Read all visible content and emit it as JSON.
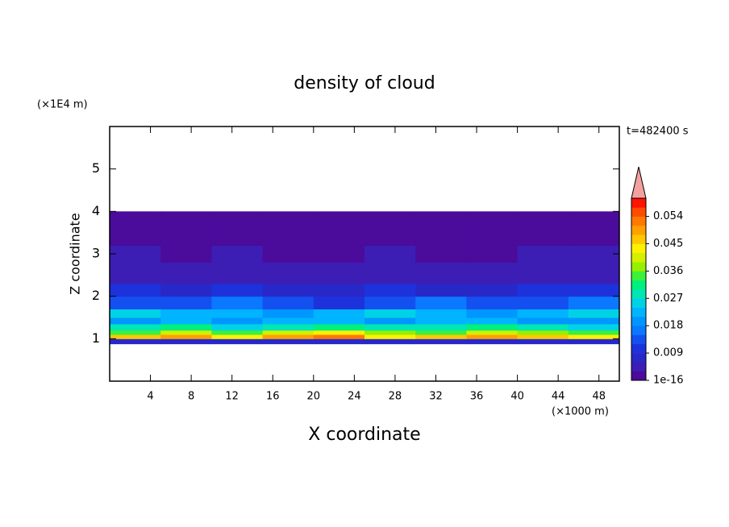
{
  "chart_data": {
    "type": "contour",
    "title": "density of cloud",
    "x_label": "X coordinate",
    "y_label": "Z coordinate",
    "x_unit": "(×1000 m)",
    "y_unit": "(×1E4 m)",
    "time_label": "t=482400 s",
    "xlim": [
      0,
      50
    ],
    "ylim": [
      0,
      6
    ],
    "xticks": [
      4,
      8,
      12,
      16,
      20,
      24,
      28,
      32,
      36,
      40,
      44,
      48
    ],
    "yticks": [
      1,
      2,
      3,
      4,
      5
    ],
    "x_edges": [
      0,
      5,
      10,
      15,
      20,
      25,
      30,
      35,
      40,
      45,
      50
    ],
    "z_edges": [
      0.88,
      1.0,
      1.1,
      1.2,
      1.35,
      1.5,
      1.7,
      2.0,
      2.3,
      2.8,
      3.2,
      4.0
    ],
    "values": [
      [
        0.006,
        0.006,
        0.007,
        0.006,
        0.006,
        0.006,
        0.006,
        0.007,
        0.006,
        0.006
      ],
      [
        0.045,
        0.048,
        0.042,
        0.05,
        0.052,
        0.044,
        0.047,
        0.05,
        0.046,
        0.043
      ],
      [
        0.036,
        0.039,
        0.034,
        0.04,
        0.042,
        0.037,
        0.035,
        0.041,
        0.038,
        0.033
      ],
      [
        0.027,
        0.03,
        0.026,
        0.029,
        0.031,
        0.028,
        0.027,
        0.03,
        0.029,
        0.026
      ],
      [
        0.02,
        0.022,
        0.019,
        0.021,
        0.023,
        0.02,
        0.021,
        0.022,
        0.02,
        0.019
      ],
      [
        0.024,
        0.021,
        0.023,
        0.02,
        0.022,
        0.025,
        0.021,
        0.02,
        0.023,
        0.024
      ],
      [
        0.014,
        0.012,
        0.015,
        0.013,
        0.011,
        0.014,
        0.016,
        0.012,
        0.013,
        0.015
      ],
      [
        0.01,
        0.009,
        0.011,
        0.008,
        0.009,
        0.01,
        0.008,
        0.009,
        0.011,
        0.01
      ],
      [
        0.005,
        0.004,
        0.005,
        0.004,
        0.005,
        0.004,
        0.005,
        0.004,
        0.005,
        0.005
      ],
      [
        0.003,
        0.002,
        0.003,
        0.002,
        0.002,
        0.003,
        0.002,
        0.002,
        0.003,
        0.003
      ],
      [
        0.001,
        0.001,
        0.001,
        0.001,
        0.001,
        0.001,
        0.001,
        0.001,
        0.001,
        0.001
      ]
    ],
    "colorbar": {
      "lim": [
        1e-16,
        0.06
      ],
      "step": 0.003,
      "ticks": [
        1e-16,
        0.009,
        0.018,
        0.027,
        0.036,
        0.045,
        0.054
      ],
      "colors": [
        "#4b0b9b",
        "#3c1eb4",
        "#2828c8",
        "#1e32dc",
        "#1450f0",
        "#0a78ff",
        "#0096ff",
        "#00b4ff",
        "#00d2e6",
        "#00e6b4",
        "#00f07d",
        "#3cf03c",
        "#96f000",
        "#d2f000",
        "#fff000",
        "#ffc800",
        "#ffa000",
        "#ff7800",
        "#ff4b00",
        "#ff1400"
      ],
      "extend_color": "#f4a0a0"
    }
  }
}
